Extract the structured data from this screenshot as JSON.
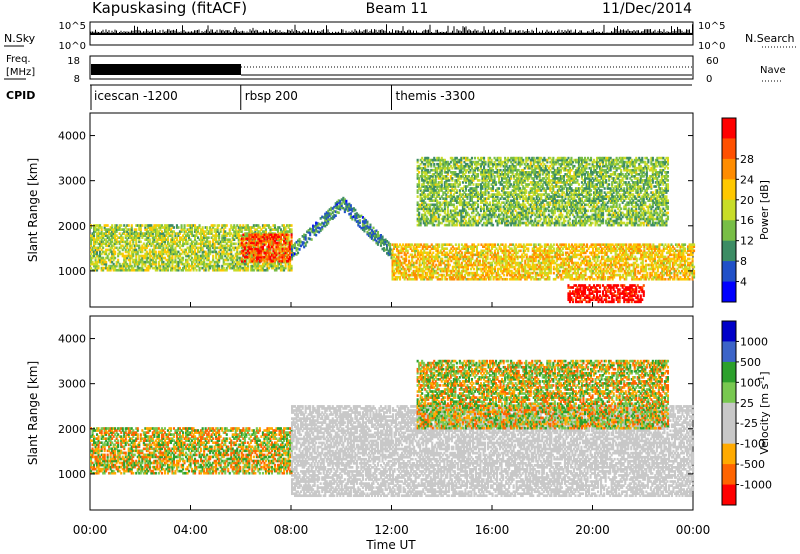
{
  "header": {
    "station": "Kapuskasing (fitACF)",
    "beam": "Beam 11",
    "date": "11/Dec/2014"
  },
  "panels": {
    "nsky": {
      "label": "N.Sky",
      "ticks": [
        "10^5",
        "10^0"
      ]
    },
    "nsearch": {
      "label": "N.Search",
      "ticks": [
        "10^5",
        "10^0"
      ]
    },
    "freq": {
      "label_line1": "Freq.",
      "label_line2": "[MHz]",
      "ticks": [
        "18",
        "8"
      ]
    },
    "nave": {
      "label": "Nave",
      "ticks": [
        "60",
        "0"
      ]
    },
    "cpid": {
      "label": "CPID"
    }
  },
  "modes": [
    {
      "name": "icescan -1200",
      "start_hour": 0
    },
    {
      "name": "rbsp 200",
      "start_hour": 6
    },
    {
      "name": "themis -3300",
      "start_hour": 12
    }
  ],
  "colors": {
    "power": [
      "#0000ff",
      "#2050c8",
      "#3c8c64",
      "#78be46",
      "#c8dc28",
      "#ffc800",
      "#ff8c00",
      "#ff5000",
      "#ff0000"
    ],
    "velocity": [
      "#ff0000",
      "#ff6400",
      "#ffaa00",
      "#c8c8c8",
      "#c8c8c8",
      "#78c850",
      "#2ca02c",
      "#3c64c8",
      "#0000c8"
    ],
    "ground": "#c8c8c8"
  },
  "chart_data": [
    {
      "type": "heatmap",
      "name": "power",
      "ylabel": "Slant Range [km]",
      "yticks": [
        1000,
        2000,
        3000,
        4000
      ],
      "ylim": [
        200,
        4500
      ],
      "xlim": [
        0,
        24
      ],
      "colorbar": {
        "label": "Power [dB]",
        "ticks": [
          "4",
          "8",
          "12",
          "16",
          "20",
          "24",
          "28"
        ],
        "range": [
          0,
          30
        ]
      },
      "features": [
        {
          "name": "near band",
          "hours": [
            0,
            8
          ],
          "range_km": [
            1000,
            2000
          ],
          "power_db": 14
        },
        {
          "name": "rbsp echo",
          "hours": [
            6,
            8
          ],
          "range_km": [
            1200,
            1800
          ],
          "power_db": 26
        },
        {
          "name": "rising arc",
          "hours": [
            8,
            12
          ],
          "range_km": [
            1400,
            2500
          ],
          "power_db": 8
        },
        {
          "name": "main arc",
          "hours": [
            12,
            24
          ],
          "range_km": [
            800,
            1600
          ],
          "power_db": 18
        },
        {
          "name": "bright core",
          "hours": [
            19,
            22
          ],
          "range_km": [
            300,
            700
          ],
          "power_db": 30
        },
        {
          "name": "upper band",
          "hours": [
            13,
            23
          ],
          "range_km": [
            2000,
            3500
          ],
          "power_db": 12
        }
      ]
    },
    {
      "type": "heatmap",
      "name": "velocity",
      "ylabel": "Slant Range [km]",
      "yticks": [
        1000,
        2000,
        3000,
        4000
      ],
      "ylim": [
        200,
        4500
      ],
      "xlim": [
        0,
        24
      ],
      "xticks": [
        "00:00",
        "04:00",
        "08:00",
        "12:00",
        "16:00",
        "20:00",
        "00:00"
      ],
      "xlabel": "Time UT",
      "colorbar": {
        "label": "Velocity [m s-1]",
        "label_main": "Velocity [m s",
        "label_sup": "-1",
        "label_end": "]",
        "ticks": [
          "1000",
          "500",
          "100",
          "25",
          "-25",
          "-100",
          "-500",
          "-1000"
        ]
      },
      "features": [
        {
          "name": "near band",
          "hours": [
            0,
            8
          ],
          "range_km": [
            1000,
            2000
          ],
          "velocity": -100
        },
        {
          "name": "ground scatter",
          "hours": [
            8,
            24
          ],
          "range_km": [
            500,
            2500
          ],
          "velocity": 0
        },
        {
          "name": "upper band",
          "hours": [
            13,
            23
          ],
          "range_km": [
            2000,
            3500
          ],
          "velocity": 100
        }
      ]
    }
  ]
}
